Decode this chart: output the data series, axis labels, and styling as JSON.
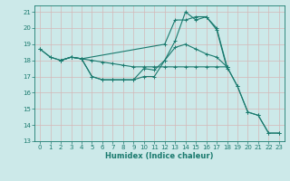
{
  "xlabel": "Humidex (Indice chaleur)",
  "xlim": [
    -0.5,
    23.5
  ],
  "ylim": [
    13,
    21.4
  ],
  "yticks": [
    13,
    14,
    15,
    16,
    17,
    18,
    19,
    20,
    21
  ],
  "xticks": [
    0,
    1,
    2,
    3,
    4,
    5,
    6,
    7,
    8,
    9,
    10,
    11,
    12,
    13,
    14,
    15,
    16,
    17,
    18,
    19,
    20,
    21,
    22,
    23
  ],
  "bg_color": "#cce9e9",
  "grid_color": "#c0d8d8",
  "line_color": "#1a7a6e",
  "lines": [
    {
      "x": [
        0,
        1,
        2,
        3,
        4,
        12,
        13,
        14,
        15,
        16,
        17,
        18,
        19,
        20,
        21,
        22,
        23
      ],
      "y": [
        18.7,
        18.2,
        18.0,
        18.2,
        18.1,
        19.0,
        20.5,
        20.5,
        20.7,
        20.7,
        20.0,
        17.6,
        16.4,
        14.8,
        14.6,
        13.5,
        13.5
      ]
    },
    {
      "x": [
        0,
        1,
        2,
        3,
        4,
        5,
        6,
        7,
        8,
        9,
        10,
        11,
        12,
        13,
        14,
        15,
        16,
        17,
        18
      ],
      "y": [
        18.7,
        18.2,
        18.0,
        18.2,
        18.1,
        18.0,
        17.9,
        17.8,
        17.7,
        17.6,
        17.6,
        17.6,
        17.6,
        17.6,
        17.6,
        17.6,
        17.6,
        17.6,
        17.6
      ]
    },
    {
      "x": [
        2,
        3,
        4,
        5,
        6,
        7,
        8,
        9,
        10,
        11,
        12,
        13,
        14,
        15,
        16,
        17,
        18,
        19,
        20,
        21,
        22,
        23
      ],
      "y": [
        18.0,
        18.2,
        18.1,
        17.0,
        16.8,
        16.8,
        16.8,
        16.8,
        17.5,
        17.4,
        18.0,
        18.8,
        19.0,
        18.7,
        18.4,
        18.2,
        17.6,
        16.4,
        14.8,
        14.6,
        13.5,
        13.5
      ]
    },
    {
      "x": [
        2,
        3,
        4,
        5,
        6,
        7,
        8,
        9,
        10,
        11,
        12,
        13,
        14,
        15,
        16,
        17,
        18
      ],
      "y": [
        18.0,
        18.2,
        18.1,
        17.0,
        16.8,
        16.8,
        16.8,
        16.8,
        17.0,
        17.0,
        18.0,
        19.2,
        21.0,
        20.5,
        20.7,
        19.9,
        17.5
      ]
    }
  ]
}
